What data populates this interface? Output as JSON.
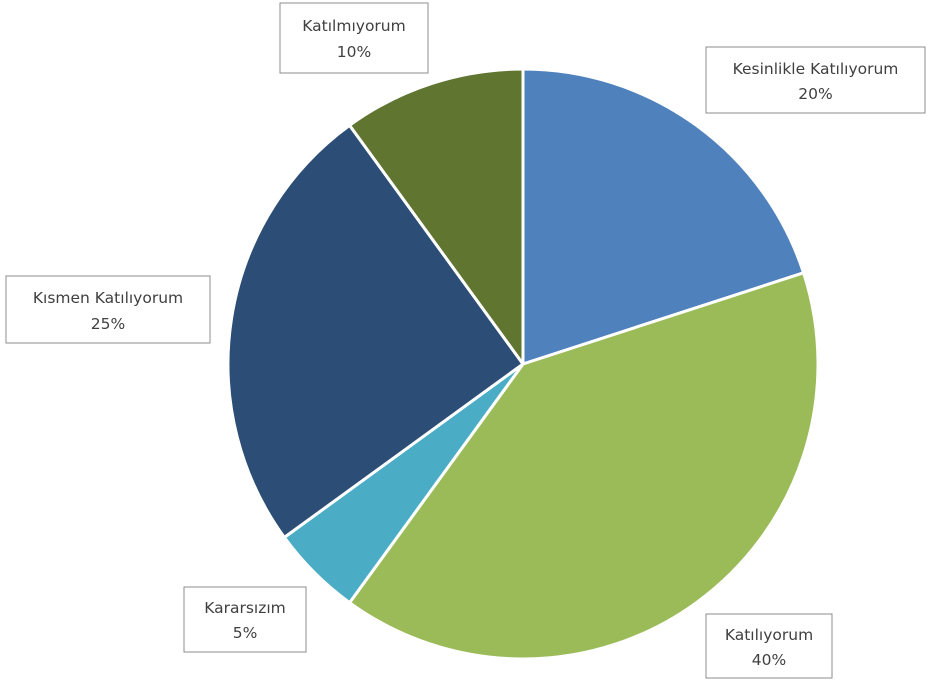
{
  "chart_data": {
    "type": "pie",
    "title": "",
    "slices": [
      {
        "label": "Kesinlikle Katılıyorum",
        "value": 20,
        "value_label": "20%",
        "color": "#4f81bd"
      },
      {
        "label": "Katılıyorum",
        "value": 40,
        "value_label": "40%",
        "color": "#9bbb59"
      },
      {
        "label": "Kararsızım",
        "value": 5,
        "value_label": "5%",
        "color": "#4bacc6"
      },
      {
        "label": "Kısmen Katılıyorum",
        "value": 25,
        "value_label": "25%",
        "color": "#2c4d75"
      },
      {
        "label": "Katılmıyorum",
        "value": 10,
        "value_label": "10%",
        "color": "#5f7530"
      }
    ],
    "start_angle_deg": 0,
    "direction": "clockwise",
    "legend": "none",
    "data_labels": "category-and-percent-in-callout-boxes"
  }
}
